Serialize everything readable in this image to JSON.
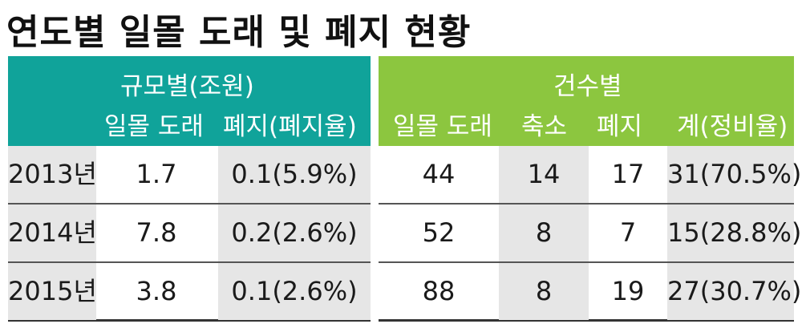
{
  "title": "연도별 일몰 도래 및 폐지 현황",
  "left": {
    "group_label": "규모별(조원)",
    "columns": [
      "일몰 도래",
      "폐지(폐지율)"
    ],
    "rows": [
      {
        "year": "2013년",
        "expiring": "1.7",
        "abolished": "0.1(5.9%)"
      },
      {
        "year": "2014년",
        "expiring": "7.8",
        "abolished": "0.2(2.6%)"
      },
      {
        "year": "2015년",
        "expiring": "3.8",
        "abolished": "0.1(2.6%)"
      }
    ]
  },
  "right": {
    "group_label": "건수별",
    "columns": [
      "일몰 도래",
      "축소",
      "폐지",
      "계(정비율)"
    ],
    "rows": [
      {
        "expiring": "44",
        "reduced": "14",
        "abolished": "17",
        "total": "31(70.5%)"
      },
      {
        "expiring": "52",
        "reduced": "8",
        "abolished": "7",
        "total": "15(28.8%)"
      },
      {
        "expiring": "88",
        "reduced": "8",
        "abolished": "19",
        "total": "27(30.7%)"
      }
    ]
  },
  "colors": {
    "left_header": "#10a39a",
    "right_header": "#8cc63f",
    "row_shade": "#e6e6e6"
  }
}
